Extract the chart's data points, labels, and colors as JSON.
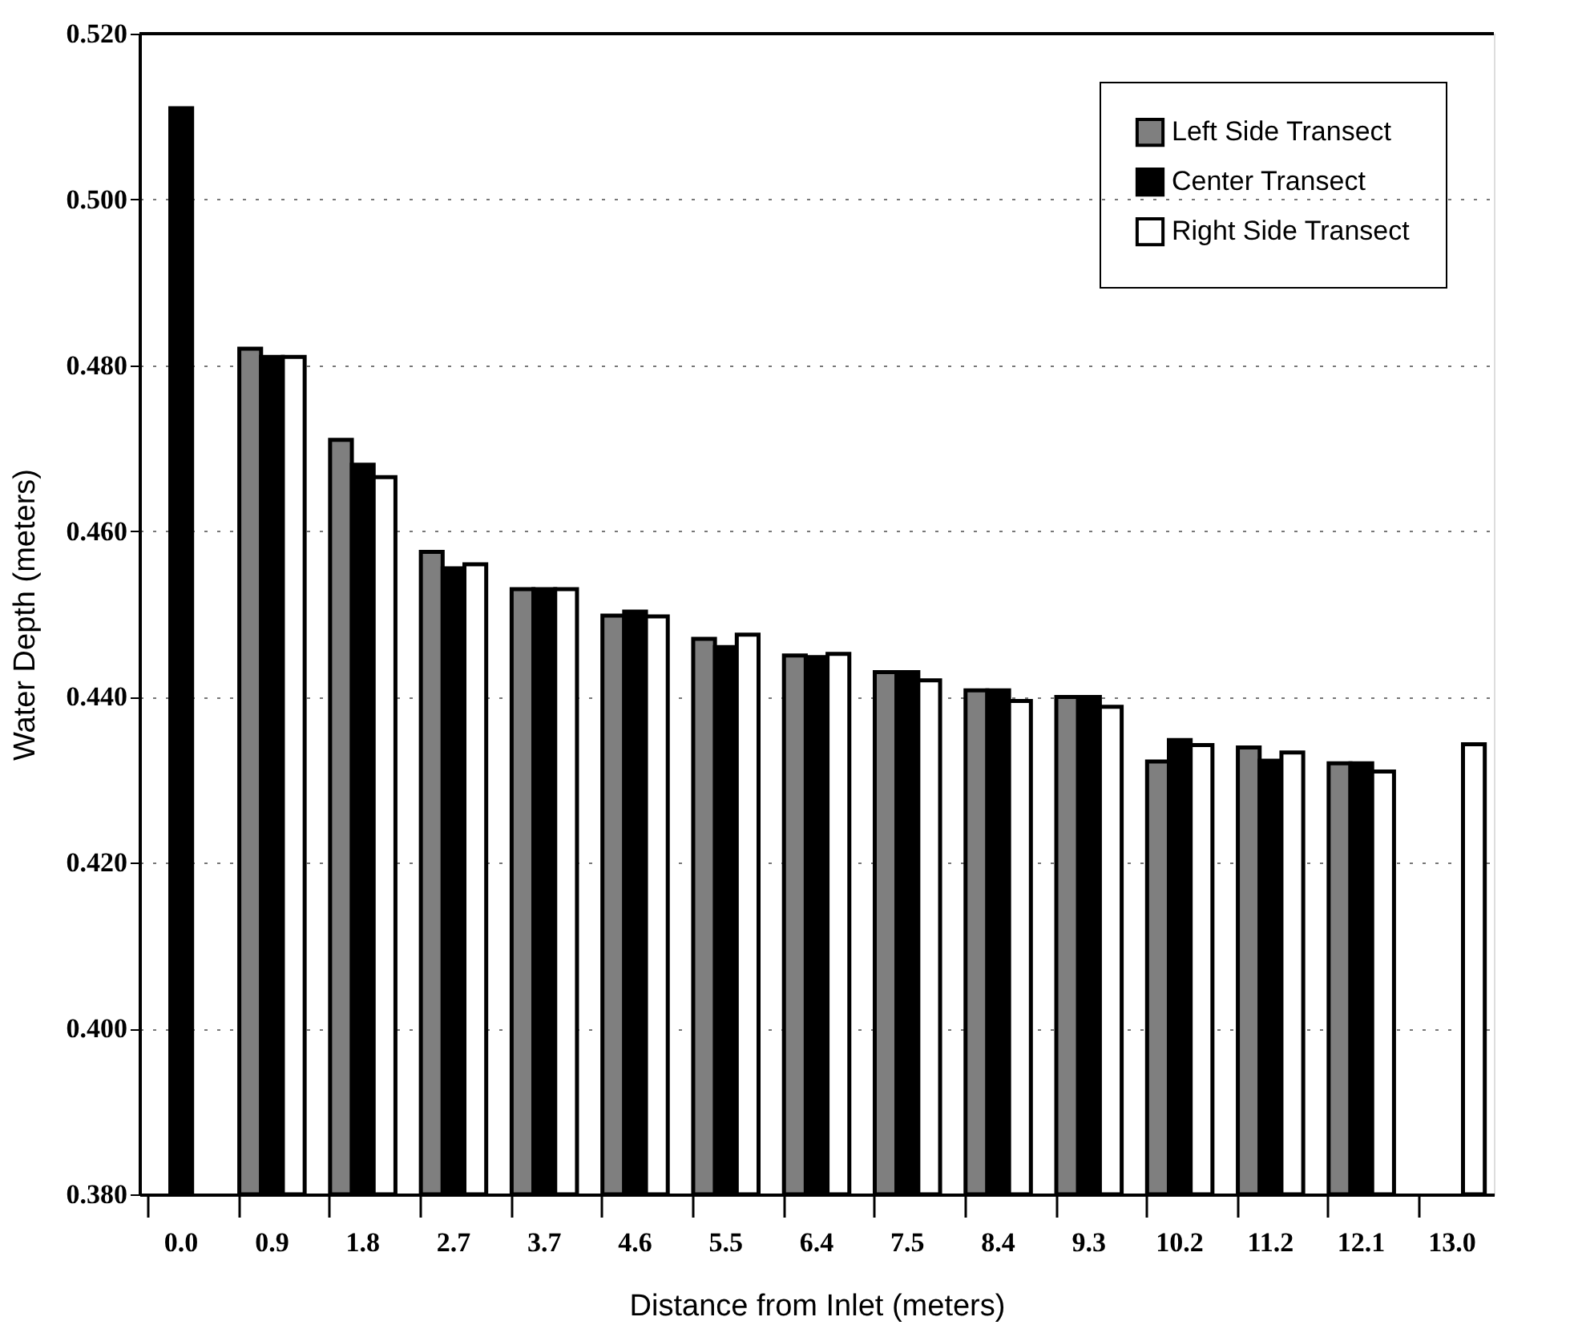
{
  "chart_data": {
    "type": "bar",
    "xlabel": "Distance from Inlet (meters)",
    "ylabel": "Water Depth (meters)",
    "categories": [
      "0.0",
      "0.9",
      "1.8",
      "2.7",
      "3.7",
      "4.6",
      "5.5",
      "6.4",
      "7.5",
      "8.4",
      "9.3",
      "10.2",
      "11.2",
      "12.1",
      "13.0"
    ],
    "series": [
      {
        "name": "Left Side Transect",
        "color": "#7f7f7f",
        "values": [
          null,
          0.482,
          0.471,
          0.4575,
          0.453,
          0.4498,
          0.447,
          0.445,
          0.443,
          0.4408,
          0.44,
          0.4322,
          0.4339,
          0.432,
          null
        ]
      },
      {
        "name": "Center Transect",
        "color": "#000000",
        "values": [
          0.511,
          0.481,
          0.468,
          0.4555,
          0.453,
          0.4503,
          0.446,
          0.4448,
          0.443,
          0.4408,
          0.44,
          0.4348,
          0.4323,
          0.432,
          null
        ]
      },
      {
        "name": "Right Side Transect",
        "color": "#ffffff",
        "values": [
          null,
          0.481,
          0.4665,
          0.456,
          0.453,
          0.4497,
          0.4475,
          0.4452,
          0.442,
          0.4395,
          0.4388,
          0.4342,
          0.4333,
          0.431,
          0.4343
        ]
      }
    ],
    "ylim": [
      0.38,
      0.52
    ],
    "yticks": [
      {
        "value": 0.38,
        "label": "0.380"
      },
      {
        "value": 0.4,
        "label": "0.400"
      },
      {
        "value": 0.42,
        "label": "0.420"
      },
      {
        "value": 0.44,
        "label": "0.440"
      },
      {
        "value": 0.46,
        "label": "0.460"
      },
      {
        "value": 0.48,
        "label": "0.480"
      },
      {
        "value": 0.5,
        "label": "0.500"
      },
      {
        "value": 0.52,
        "label": "0.520"
      }
    ],
    "grid": "y",
    "legend": "top right"
  }
}
